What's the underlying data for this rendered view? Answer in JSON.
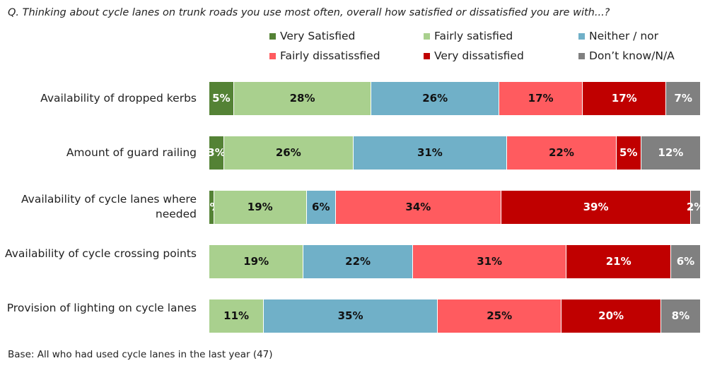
{
  "chart_data": {
    "type": "bar",
    "orientation": "horizontal-stacked-100",
    "title": "Q. Thinking about cycle lanes on trunk roads you use most often, overall how satisfied or dissatisfied you are with...?",
    "categories": [
      "Availability of dropped kerbs",
      "Amount of guard railing",
      "Availability of cycle lanes where needed",
      "Availability of cycle crossing points",
      "Provision of lighting on cycle lanes"
    ],
    "series": [
      {
        "name": "Very Satisfied",
        "color": "#548235",
        "label_color": "#ffffff",
        "values": [
          5,
          3,
          1,
          0,
          0
        ]
      },
      {
        "name": "Fairly satisfied",
        "color": "#A9D08E",
        "label_color": "#111111",
        "values": [
          28,
          26,
          19,
          19,
          11
        ]
      },
      {
        "name": "Neither / nor",
        "color": "#70B0C8",
        "label_color": "#111111",
        "values": [
          26,
          31,
          6,
          22,
          35
        ]
      },
      {
        "name": "Fairly dissatissfied",
        "color": "#FF5B5F",
        "label_color": "#111111",
        "values": [
          17,
          22,
          34,
          31,
          25
        ]
      },
      {
        "name": "Very dissatisfied",
        "color": "#C00000",
        "label_color": "#ffffff",
        "values": [
          17,
          5,
          39,
          21,
          20
        ]
      },
      {
        "name": "Don’t know/N/A",
        "color": "#808080",
        "label_color": "#ffffff",
        "values": [
          7,
          12,
          2,
          6,
          8
        ]
      }
    ],
    "value_suffix": "%",
    "legend_placement": "top",
    "grid": false
  },
  "footer": {
    "base": "Base: All who had used cycle lanes in the last year (47)"
  }
}
